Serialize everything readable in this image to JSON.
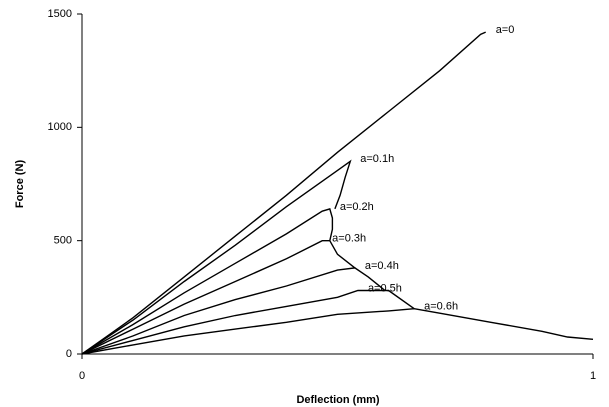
{
  "chart_data": {
    "type": "line",
    "xlabel": "Deflection (mm)",
    "ylabel": "Force (N)",
    "xlim": [
      0,
      1
    ],
    "xticks": [
      0,
      1
    ],
    "ylim": [
      0,
      1500
    ],
    "yticks": [
      0,
      500,
      1000,
      1500
    ],
    "color": "#000000",
    "series": [
      {
        "name": "a=0",
        "x": [
          0,
          0.05,
          0.1,
          0.2,
          0.3,
          0.4,
          0.5,
          0.6,
          0.7,
          0.78,
          0.79
        ],
        "values": [
          0,
          80,
          160,
          340,
          520,
          700,
          890,
          1070,
          1250,
          1410,
          1420
        ]
      },
      {
        "name": "a=0.1h",
        "x": [
          0,
          0.1,
          0.2,
          0.3,
          0.4,
          0.5,
          0.525,
          0.515,
          0.505,
          0.495
        ],
        "values": [
          0,
          150,
          320,
          480,
          650,
          810,
          850,
          780,
          700,
          640
        ]
      },
      {
        "name": "a=0.2h",
        "x": [
          0,
          0.1,
          0.2,
          0.3,
          0.4,
          0.47,
          0.485,
          0.49,
          0.49,
          0.485
        ],
        "values": [
          0,
          130,
          270,
          400,
          530,
          630,
          640,
          600,
          550,
          500
        ]
      },
      {
        "name": "a=0.3h",
        "x": [
          0,
          0.1,
          0.2,
          0.3,
          0.4,
          0.47,
          0.485,
          0.5,
          0.534
        ],
        "values": [
          0,
          110,
          220,
          320,
          420,
          500,
          500,
          440,
          380
        ]
      },
      {
        "name": "a=0.4h",
        "x": [
          0,
          0.1,
          0.2,
          0.3,
          0.4,
          0.5,
          0.534,
          0.56,
          0.593
        ],
        "values": [
          0,
          80,
          170,
          240,
          300,
          370,
          380,
          340,
          280
        ]
      },
      {
        "name": "a=0.5h",
        "x": [
          0,
          0.1,
          0.2,
          0.3,
          0.4,
          0.5,
          0.54,
          0.6,
          0.65
        ],
        "values": [
          0,
          60,
          120,
          170,
          210,
          250,
          280,
          280,
          200
        ]
      },
      {
        "name": "a=0.6h",
        "x": [
          0,
          0.1,
          0.2,
          0.3,
          0.4,
          0.5,
          0.6,
          0.65,
          0.7,
          0.8,
          0.9,
          0.95,
          1.0
        ],
        "values": [
          0,
          40,
          80,
          110,
          140,
          175,
          190,
          200,
          180,
          140,
          100,
          75,
          65
        ]
      }
    ]
  }
}
